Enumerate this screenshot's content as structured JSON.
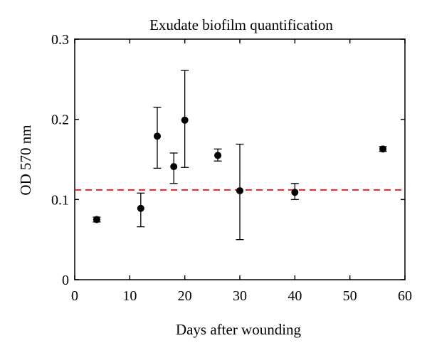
{
  "chart_data": {
    "type": "scatter",
    "title": "Exudate biofilm quantification",
    "xlabel": "Days after wounding",
    "ylabel": "OD 570 nm",
    "xlim": [
      0,
      60
    ],
    "ylim": [
      0,
      0.3
    ],
    "x_ticks": [
      "0",
      "10",
      "20",
      "30",
      "40",
      "50",
      "60"
    ],
    "y_ticks": [
      "0",
      "0.1",
      "0.2",
      "0.3"
    ],
    "grid": false,
    "points": [
      {
        "x": 4,
        "y": 0.075,
        "err_low": 0.072,
        "err_high": 0.078
      },
      {
        "x": 12,
        "y": 0.089,
        "err_low": 0.066,
        "err_high": 0.108
      },
      {
        "x": 15,
        "y": 0.179,
        "err_low": 0.139,
        "err_high": 0.215
      },
      {
        "x": 18,
        "y": 0.141,
        "err_low": 0.12,
        "err_high": 0.158
      },
      {
        "x": 20,
        "y": 0.199,
        "err_low": 0.14,
        "err_high": 0.261
      },
      {
        "x": 26,
        "y": 0.155,
        "err_low": 0.148,
        "err_high": 0.163
      },
      {
        "x": 30,
        "y": 0.111,
        "err_low": 0.05,
        "err_high": 0.169
      },
      {
        "x": 40,
        "y": 0.109,
        "err_low": 0.1,
        "err_high": 0.12
      },
      {
        "x": 56,
        "y": 0.163,
        "err_low": 0.16,
        "err_high": 0.166
      }
    ],
    "reference_line": {
      "y": 0.112,
      "style": "dashed",
      "color": "#e8202a"
    },
    "marker_color": "#000000"
  }
}
